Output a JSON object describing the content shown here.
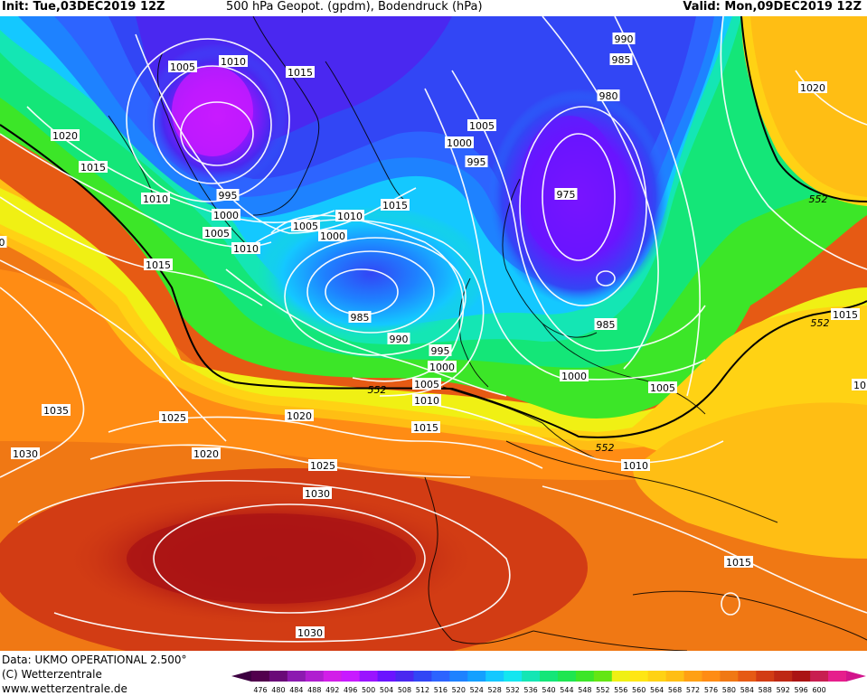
{
  "header": {
    "init": "Init: Tue,03DEC2019 12Z",
    "title": "500 hPa Geopot. (gpdm), Bodendruck (hPa)",
    "valid": "Valid: Mon,09DEC2019 12Z"
  },
  "footer": {
    "data_source": "Data: UKMO OPERATIONAL 2.500°",
    "copyright": "(C) Wetterzentrale",
    "website": "www.wetterzentrale.de"
  },
  "isobar_labels": [
    {
      "text": "1005"
    },
    {
      "text": "1010"
    },
    {
      "text": "1015"
    },
    {
      "text": "1020"
    },
    {
      "text": "1015"
    },
    {
      "text": "1010"
    },
    {
      "text": "995"
    },
    {
      "text": "1000"
    },
    {
      "text": "1005"
    },
    {
      "text": "1010"
    },
    {
      "text": "1015"
    },
    {
      "text": "1010"
    },
    {
      "text": "1015"
    },
    {
      "text": "1005"
    },
    {
      "text": "1000"
    },
    {
      "text": "985"
    },
    {
      "text": "990"
    },
    {
      "text": "995"
    },
    {
      "text": "1000"
    },
    {
      "text": "1005"
    },
    {
      "text": "1010"
    },
    {
      "text": "1015"
    },
    {
      "text": "1020"
    },
    {
      "text": "1025"
    },
    {
      "text": "1020"
    },
    {
      "text": "1025"
    },
    {
      "text": "1030"
    },
    {
      "text": "1035"
    },
    {
      "text": "1030"
    },
    {
      "text": "1030"
    },
    {
      "text": "990"
    },
    {
      "text": "985"
    },
    {
      "text": "980"
    },
    {
      "text": "1005"
    },
    {
      "text": "1000"
    },
    {
      "text": "995"
    },
    {
      "text": "975"
    },
    {
      "text": "985"
    },
    {
      "text": "1000"
    },
    {
      "text": "1005"
    },
    {
      "text": "1010"
    },
    {
      "text": "1015"
    },
    {
      "text": "1020"
    },
    {
      "text": "1015"
    },
    {
      "text": "552"
    },
    {
      "text": "552"
    },
    {
      "text": "552"
    },
    {
      "text": "552"
    },
    {
      "text": "0"
    },
    {
      "text": "10"
    }
  ],
  "colorbar": {
    "ticks": [
      "476",
      "480",
      "484",
      "488",
      "492",
      "496",
      "500",
      "504",
      "508",
      "512",
      "516",
      "520",
      "524",
      "528",
      "532",
      "536",
      "540",
      "544",
      "548",
      "552",
      "556",
      "560",
      "564",
      "568",
      "572",
      "576",
      "580",
      "584",
      "588",
      "592",
      "596",
      "600"
    ],
    "colors": [
      "#52004d",
      "#6a0a78",
      "#8c1ab0",
      "#b01ed0",
      "#d21ee8",
      "#c81aff",
      "#9a14ff",
      "#6a14ff",
      "#4a28f0",
      "#3246f5",
      "#2d64ff",
      "#1e82ff",
      "#14a0ff",
      "#14c8ff",
      "#14e6f0",
      "#14e6b4",
      "#14e678",
      "#1ee650",
      "#3ce628",
      "#64e614",
      "#f0f014",
      "#ffe614",
      "#ffd214",
      "#ffbe14",
      "#ffa014",
      "#ff8c14",
      "#f07814",
      "#e65a14",
      "#d23c14",
      "#be2814",
      "#aa1414",
      "#c81e50",
      "#e61e8c"
    ],
    "low_arrow_color": "#3c0040",
    "high_arrow_color": "#d2148c"
  }
}
